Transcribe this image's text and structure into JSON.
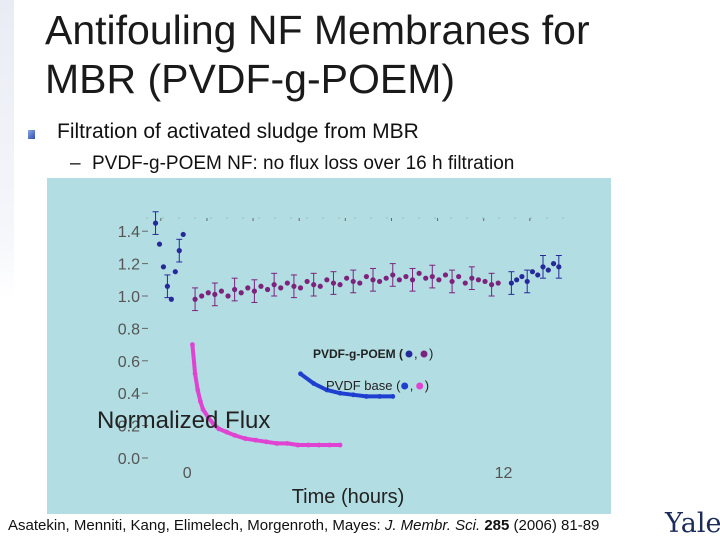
{
  "slide": {
    "title_line1": "Antifouling NF Membranes for",
    "title_line2": "MBR (PVDF-g-POEM)",
    "bullet": "Filtration of activated sludge from MBR",
    "sub_dash": "–",
    "sub_bullet": "PVDF-g-POEM NF: no flux loss over 16 h filtration",
    "citation_authors": "Asatekin, Menniti, Kang, Elimelech, Morgenroth, Mayes: ",
    "citation_journal": "J. Membr. Sci.",
    "citation_volume": "285",
    "citation_rest": " (2006) 81-89",
    "logo_text": "Yale"
  },
  "colors": {
    "plot_bg": "#b2dde2",
    "pvdf_g_poem_blue": "#26299a",
    "pvdf_g_poem_purple": "#7c237c",
    "pvdf_base_blue": "#1f3fd0",
    "pvdf_base_magenta": "#e043d2",
    "axis": "#555555"
  },
  "chart_data": {
    "type": "scatter",
    "ylabel": "Normalized Flux",
    "xlabel": "Time (hours)",
    "xlim": [
      -1.6,
      14.6
    ],
    "ylim": [
      0.0,
      1.5
    ],
    "x_ticks": [
      "0",
      "12"
    ],
    "y_ticks": [
      "0.0",
      "0.2",
      "0.4",
      "0.6",
      "0.8",
      "1.0",
      "1.2",
      "1.4"
    ],
    "legend": [
      {
        "label": "PVDF-g-POEM (",
        "sep": ",",
        "end": ")",
        "colors": [
          "#26299a",
          "#7c237c"
        ]
      },
      {
        "label": "PVDF base (",
        "sep": ",",
        "end": ")",
        "colors": [
          "#1f3fd0",
          "#e043d2"
        ]
      }
    ],
    "series": [
      {
        "name": "PVDF-g-POEM",
        "segment": "pre-filtration",
        "color": "#26299a",
        "x": [
          -1.2,
          -1.05,
          -0.9,
          -0.75,
          -0.6,
          -0.45,
          -0.3,
          -0.15
        ],
        "y": [
          1.45,
          1.32,
          1.18,
          1.06,
          0.98,
          1.15,
          1.28,
          1.38
        ]
      },
      {
        "name": "PVDF-g-POEM",
        "segment": "filtration",
        "color": "#7c237c",
        "x": [
          0.3,
          0.55,
          0.8,
          1.05,
          1.3,
          1.55,
          1.8,
          2.05,
          2.3,
          2.55,
          2.8,
          3.05,
          3.3,
          3.55,
          3.8,
          4.05,
          4.3,
          4.55,
          4.8,
          5.05,
          5.3,
          5.55,
          5.8,
          6.05,
          6.3,
          6.55,
          6.8,
          7.05,
          7.3,
          7.55,
          7.8,
          8.05,
          8.3,
          8.55,
          8.8,
          9.05,
          9.3,
          9.55,
          9.8,
          10.05,
          10.3,
          10.55,
          10.8,
          11.05,
          11.3,
          11.55,
          11.8
        ],
        "y": [
          0.98,
          1.0,
          1.02,
          1.01,
          1.03,
          1.0,
          1.04,
          1.02,
          1.05,
          1.03,
          1.06,
          1.04,
          1.07,
          1.05,
          1.08,
          1.06,
          1.05,
          1.09,
          1.07,
          1.06,
          1.1,
          1.08,
          1.07,
          1.11,
          1.09,
          1.08,
          1.12,
          1.1,
          1.09,
          1.11,
          1.13,
          1.1,
          1.12,
          1.1,
          1.14,
          1.11,
          1.12,
          1.1,
          1.13,
          1.09,
          1.12,
          1.08,
          1.11,
          1.1,
          1.09,
          1.07,
          1.08
        ]
      },
      {
        "name": "PVDF-g-POEM",
        "segment": "post-filtration",
        "color": "#26299a",
        "x": [
          12.3,
          12.5,
          12.7,
          12.9,
          13.1,
          13.3,
          13.5,
          13.7,
          13.9,
          14.1
        ],
        "y": [
          1.08,
          1.1,
          1.12,
          1.09,
          1.15,
          1.13,
          1.18,
          1.16,
          1.2,
          1.18
        ]
      },
      {
        "name": "PVDF base",
        "segment": "pre-filtration",
        "color": "#1f3fd0",
        "x": [
          4.3,
          4.8,
          5.3,
          5.8,
          6.3,
          6.8,
          7.3,
          7.8
        ],
        "y": [
          0.52,
          0.46,
          0.42,
          0.4,
          0.39,
          0.38,
          0.38,
          0.38
        ]
      },
      {
        "name": "PVDF base",
        "segment": "filtration",
        "color": "#e043d2",
        "x": [
          0.2,
          0.3,
          0.4,
          0.5,
          0.6,
          0.8,
          1.0,
          1.2,
          1.5,
          1.8,
          2.2,
          2.6,
          3.0,
          3.4,
          3.8,
          4.2,
          4.6,
          5.0,
          5.4,
          5.8
        ],
        "y": [
          0.7,
          0.52,
          0.42,
          0.35,
          0.3,
          0.25,
          0.21,
          0.18,
          0.16,
          0.14,
          0.12,
          0.11,
          0.1,
          0.09,
          0.09,
          0.08,
          0.08,
          0.08,
          0.08,
          0.08
        ]
      }
    ]
  }
}
